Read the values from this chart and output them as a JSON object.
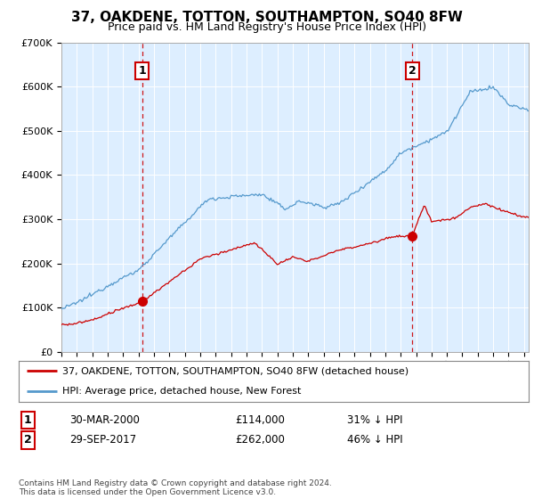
{
  "title": "37, OAKDENE, TOTTON, SOUTHAMPTON, SO40 8FW",
  "subtitle": "Price paid vs. HM Land Registry's House Price Index (HPI)",
  "legend_line1": "37, OAKDENE, TOTTON, SOUTHAMPTON, SO40 8FW (detached house)",
  "legend_line2": "HPI: Average price, detached house, New Forest",
  "transaction1_date": "30-MAR-2000",
  "transaction1_price": "£114,000",
  "transaction1_hpi": "31% ↓ HPI",
  "transaction1_year": 2000.25,
  "transaction1_price_val": 114000,
  "transaction2_date": "29-SEP-2017",
  "transaction2_price": "£262,000",
  "transaction2_hpi": "46% ↓ HPI",
  "transaction2_year": 2017.75,
  "transaction2_price_val": 262000,
  "red_color": "#cc0000",
  "blue_color": "#5599cc",
  "bg_color": "#ddeeff",
  "footer": "Contains HM Land Registry data © Crown copyright and database right 2024.\nThis data is licensed under the Open Government Licence v3.0.",
  "ylim": [
    0,
    700000
  ],
  "xlim_start": 1995.0,
  "xlim_end": 2025.3
}
